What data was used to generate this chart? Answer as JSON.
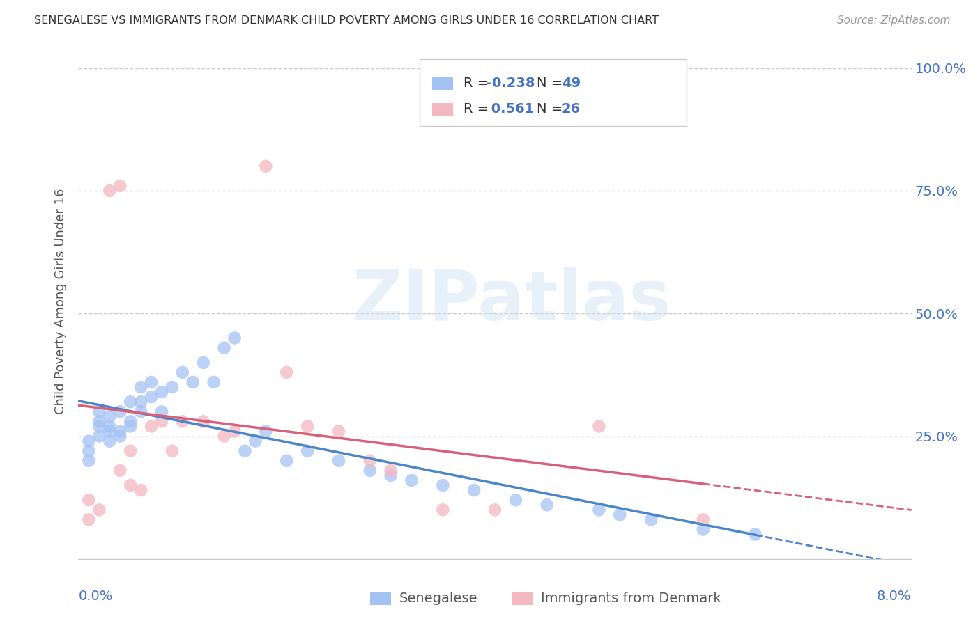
{
  "title": "SENEGALESE VS IMMIGRANTS FROM DENMARK CHILD POVERTY AMONG GIRLS UNDER 16 CORRELATION CHART",
  "source": "Source: ZipAtlas.com",
  "ylabel": "Child Poverty Among Girls Under 16",
  "legend_label1": "Senegalese",
  "legend_label2": "Immigrants from Denmark",
  "R1": -0.238,
  "N1": 49,
  "R2": 0.561,
  "N2": 26,
  "color_blue": "#a4c2f4",
  "color_pink": "#f4b8c1",
  "line_color_blue": "#4a86c8",
  "line_color_pink": "#d9607a",
  "watermark": "ZIPatlas",
  "blue_x": [
    0.001,
    0.001,
    0.001,
    0.002,
    0.002,
    0.002,
    0.002,
    0.003,
    0.003,
    0.003,
    0.003,
    0.004,
    0.004,
    0.004,
    0.005,
    0.005,
    0.005,
    0.006,
    0.006,
    0.006,
    0.007,
    0.007,
    0.008,
    0.008,
    0.009,
    0.01,
    0.011,
    0.012,
    0.013,
    0.014,
    0.015,
    0.016,
    0.017,
    0.018,
    0.02,
    0.022,
    0.025,
    0.028,
    0.03,
    0.032,
    0.035,
    0.038,
    0.042,
    0.045,
    0.05,
    0.052,
    0.055,
    0.06,
    0.065
  ],
  "blue_y": [
    0.22,
    0.24,
    0.2,
    0.25,
    0.27,
    0.28,
    0.3,
    0.24,
    0.26,
    0.27,
    0.29,
    0.25,
    0.3,
    0.26,
    0.28,
    0.32,
    0.27,
    0.3,
    0.35,
    0.32,
    0.33,
    0.36,
    0.34,
    0.3,
    0.35,
    0.38,
    0.36,
    0.4,
    0.36,
    0.43,
    0.45,
    0.22,
    0.24,
    0.26,
    0.2,
    0.22,
    0.2,
    0.18,
    0.17,
    0.16,
    0.15,
    0.14,
    0.12,
    0.11,
    0.1,
    0.09,
    0.08,
    0.06,
    0.05
  ],
  "pink_x": [
    0.001,
    0.001,
    0.002,
    0.003,
    0.004,
    0.004,
    0.005,
    0.005,
    0.006,
    0.007,
    0.008,
    0.009,
    0.01,
    0.012,
    0.014,
    0.015,
    0.018,
    0.02,
    0.022,
    0.025,
    0.028,
    0.03,
    0.035,
    0.04,
    0.05,
    0.06
  ],
  "pink_y": [
    0.12,
    0.08,
    0.1,
    0.75,
    0.76,
    0.18,
    0.22,
    0.15,
    0.14,
    0.27,
    0.28,
    0.22,
    0.28,
    0.28,
    0.25,
    0.26,
    0.8,
    0.38,
    0.27,
    0.26,
    0.2,
    0.18,
    0.1,
    0.1,
    0.27,
    0.08
  ],
  "xlim": [
    0.0,
    0.08
  ],
  "ylim": [
    0.0,
    1.05
  ],
  "ytick_vals": [
    0.25,
    0.5,
    0.75,
    1.0
  ],
  "ytick_labels": [
    "25.0%",
    "50.0%",
    "75.0%",
    "100.0%"
  ]
}
